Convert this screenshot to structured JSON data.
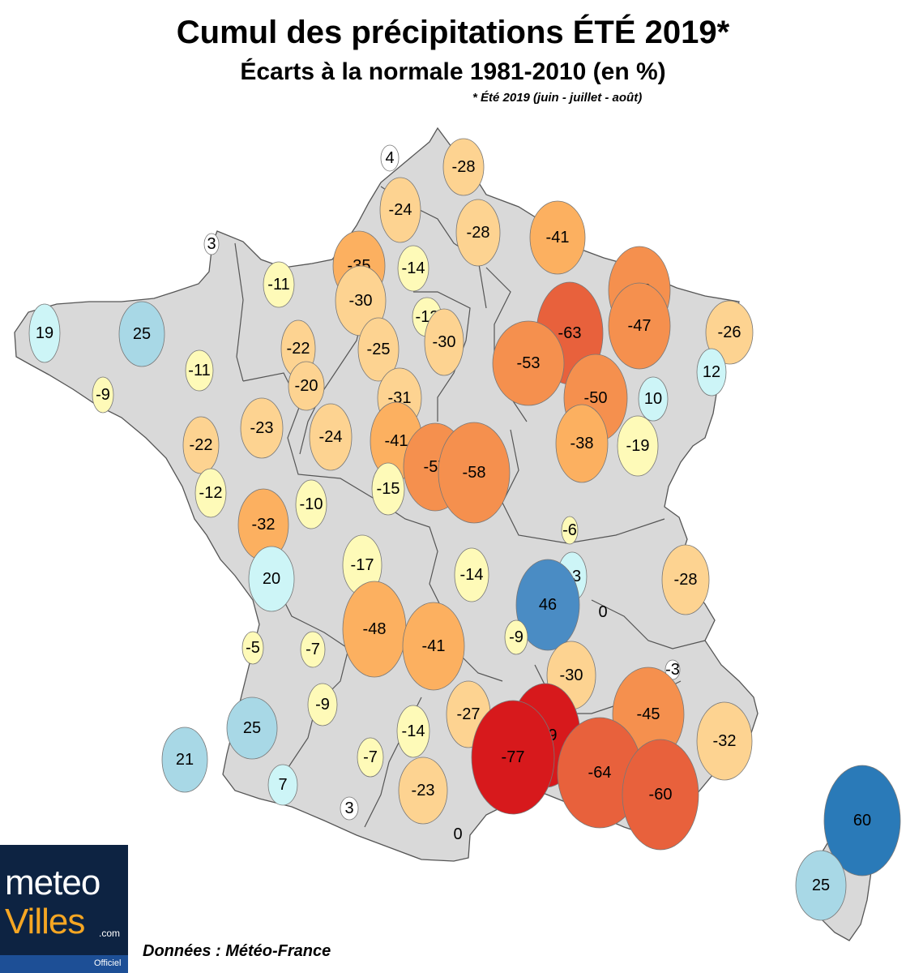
{
  "header": {
    "title": "Cumul des précipitations ÉTÉ 2019*",
    "subtitle": "Écarts à la normale 1981-2010 (en %)",
    "note": "* Été 2019 (juin - juillet - août)"
  },
  "footer": {
    "source": "Données : Météo-France"
  },
  "logo": {
    "line1": "meteo",
    "line2": "Villes",
    "suffix": ".com",
    "tag": "Officiel"
  },
  "colors": {
    "land": "#d9d9d9",
    "border": "#555555",
    "strong_positive": "#2a7ab8",
    "positive": "#4a8cc4",
    "moderate_positive": "#a8d8e6",
    "slight_positive": "#cdf5f7",
    "neutral": "#ffffff",
    "slight_negative": "#fefab8",
    "moderate_negative": "#fdd391",
    "negative": "#fcb060",
    "strong_negative": "#f5904e",
    "very_negative": "#e8613c",
    "extreme_negative": "#d7191c"
  },
  "stations": [
    {
      "value": "4",
      "cls": "neutral"
    },
    {
      "value": "-28",
      "cls": "moderate_negative"
    },
    {
      "value": "-24",
      "cls": "moderate_negative"
    },
    {
      "value": "-28",
      "cls": "moderate_negative"
    },
    {
      "value": "-41",
      "cls": "negative"
    },
    {
      "value": "3",
      "cls": "neutral"
    },
    {
      "value": "-35",
      "cls": "negative"
    },
    {
      "value": "-14",
      "cls": "slight_negative"
    },
    {
      "value": "-50",
      "cls": "strong_negative"
    },
    {
      "value": "-11",
      "cls": "slight_negative"
    },
    {
      "value": "-30",
      "cls": "moderate_negative"
    },
    {
      "value": "-63",
      "cls": "very_negative"
    },
    {
      "value": "-13",
      "cls": "slight_negative"
    },
    {
      "value": "-47",
      "cls": "strong_negative"
    },
    {
      "value": "19",
      "cls": "slight_positive"
    },
    {
      "value": "25",
      "cls": "moderate_positive"
    },
    {
      "value": "-26",
      "cls": "moderate_negative"
    },
    {
      "value": "-22",
      "cls": "moderate_negative"
    },
    {
      "value": "-25",
      "cls": "moderate_negative"
    },
    {
      "value": "-30",
      "cls": "moderate_negative"
    },
    {
      "value": "-53",
      "cls": "strong_negative"
    },
    {
      "value": "-11",
      "cls": "slight_negative"
    },
    {
      "value": "12",
      "cls": "slight_positive"
    },
    {
      "value": "-20",
      "cls": "moderate_negative"
    },
    {
      "value": "-9",
      "cls": "slight_negative"
    },
    {
      "value": "-31",
      "cls": "moderate_negative"
    },
    {
      "value": "-50",
      "cls": "strong_negative"
    },
    {
      "value": "10",
      "cls": "slight_positive"
    },
    {
      "value": "-23",
      "cls": "moderate_negative"
    },
    {
      "value": "-22",
      "cls": "moderate_negative"
    },
    {
      "value": "-24",
      "cls": "moderate_negative"
    },
    {
      "value": "-41",
      "cls": "negative"
    },
    {
      "value": "-38",
      "cls": "negative"
    },
    {
      "value": "-19",
      "cls": "slight_negative"
    },
    {
      "value": "-57",
      "cls": "strong_negative"
    },
    {
      "value": "-58",
      "cls": "strong_negative"
    },
    {
      "value": "-12",
      "cls": "slight_negative"
    },
    {
      "value": "-15",
      "cls": "slight_negative"
    },
    {
      "value": "-10",
      "cls": "slight_negative"
    },
    {
      "value": "-32",
      "cls": "negative"
    },
    {
      "value": "-6",
      "cls": "slight_negative"
    },
    {
      "value": "20",
      "cls": "slight_positive"
    },
    {
      "value": "-17",
      "cls": "slight_negative"
    },
    {
      "value": "-14",
      "cls": "slight_negative"
    },
    {
      "value": "13",
      "cls": "slight_positive"
    },
    {
      "value": "-28",
      "cls": "moderate_negative"
    },
    {
      "value": "46",
      "cls": "positive"
    },
    {
      "value": "0",
      "cls": "none"
    },
    {
      "value": "-48",
      "cls": "negative"
    },
    {
      "value": "-41",
      "cls": "negative"
    },
    {
      "value": "-9",
      "cls": "slight_negative"
    },
    {
      "value": "-5",
      "cls": "slight_negative"
    },
    {
      "value": "-7",
      "cls": "slight_negative"
    },
    {
      "value": "-30",
      "cls": "moderate_negative"
    },
    {
      "value": "-3",
      "cls": "neutral"
    },
    {
      "value": "-9",
      "cls": "slight_negative"
    },
    {
      "value": "-45",
      "cls": "strong_negative"
    },
    {
      "value": "25",
      "cls": "moderate_positive"
    },
    {
      "value": "-14",
      "cls": "slight_negative"
    },
    {
      "value": "-27",
      "cls": "moderate_negative"
    },
    {
      "value": "-79",
      "cls": "extreme_negative"
    },
    {
      "value": "-32",
      "cls": "moderate_negative"
    },
    {
      "value": "21",
      "cls": "moderate_positive"
    },
    {
      "value": "-7",
      "cls": "slight_negative"
    },
    {
      "value": "-77",
      "cls": "extreme_negative"
    },
    {
      "value": "-64",
      "cls": "very_negative"
    },
    {
      "value": "-23",
      "cls": "moderate_negative"
    },
    {
      "value": "-60",
      "cls": "very_negative"
    },
    {
      "value": "7",
      "cls": "slight_positive"
    },
    {
      "value": "3",
      "cls": "neutral"
    },
    {
      "value": "0",
      "cls": "none"
    },
    {
      "value": "60",
      "cls": "strong_positive"
    },
    {
      "value": "25",
      "cls": "moderate_positive"
    }
  ]
}
